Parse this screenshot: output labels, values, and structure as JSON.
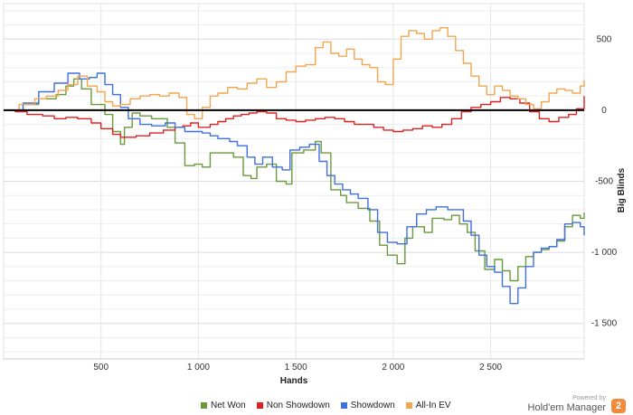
{
  "chart_data": {
    "type": "line",
    "xlabel": "Hands",
    "ylabel": "Big Blinds",
    "xlim": [
      0,
      2980
    ],
    "ylim": [
      -1750,
      750
    ],
    "x_ticks": [
      500,
      1000,
      1500,
      2000,
      2500
    ],
    "x_tick_labels": [
      "500",
      "1 000",
      "1 500",
      "2 000",
      "2 500"
    ],
    "y_ticks": [
      500,
      0,
      -500,
      -1000,
      -1500
    ],
    "y_tick_labels": [
      "500",
      "0",
      "-500",
      "-1 000",
      "-1 500"
    ],
    "grid": true,
    "legend_position": "bottom",
    "series": [
      {
        "name": "Net Won",
        "color": "#6a9a3b",
        "points": [
          [
            0,
            0
          ],
          [
            100,
            40
          ],
          [
            180,
            80
          ],
          [
            270,
            110
          ],
          [
            320,
            170
          ],
          [
            360,
            220
          ],
          [
            400,
            150
          ],
          [
            450,
            40
          ],
          [
            520,
            -30
          ],
          [
            560,
            -150
          ],
          [
            600,
            -240
          ],
          [
            620,
            -120
          ],
          [
            660,
            -20
          ],
          [
            700,
            -40
          ],
          [
            760,
            -60
          ],
          [
            840,
            -120
          ],
          [
            880,
            -230
          ],
          [
            930,
            -390
          ],
          [
            980,
            -380
          ],
          [
            1020,
            -400
          ],
          [
            1060,
            -300
          ],
          [
            1120,
            -300
          ],
          [
            1180,
            -330
          ],
          [
            1230,
            -460
          ],
          [
            1270,
            -480
          ],
          [
            1300,
            -400
          ],
          [
            1350,
            -380
          ],
          [
            1400,
            -500
          ],
          [
            1450,
            -520
          ],
          [
            1480,
            -300
          ],
          [
            1540,
            -280
          ],
          [
            1600,
            -220
          ],
          [
            1630,
            -300
          ],
          [
            1680,
            -560
          ],
          [
            1730,
            -600
          ],
          [
            1760,
            -650
          ],
          [
            1820,
            -690
          ],
          [
            1880,
            -780
          ],
          [
            1930,
            -950
          ],
          [
            1970,
            -1020
          ],
          [
            2020,
            -1080
          ],
          [
            2060,
            -900
          ],
          [
            2100,
            -820
          ],
          [
            2160,
            -860
          ],
          [
            2200,
            -760
          ],
          [
            2260,
            -770
          ],
          [
            2300,
            -740
          ],
          [
            2340,
            -800
          ],
          [
            2380,
            -860
          ],
          [
            2420,
            -990
          ],
          [
            2470,
            -1120
          ],
          [
            2520,
            -1050
          ],
          [
            2560,
            -1130
          ],
          [
            2600,
            -1200
          ],
          [
            2640,
            -1100
          ],
          [
            2680,
            -1030
          ],
          [
            2720,
            -1000
          ],
          [
            2760,
            -980
          ],
          [
            2800,
            -960
          ],
          [
            2840,
            -920
          ],
          [
            2880,
            -820
          ],
          [
            2920,
            -740
          ],
          [
            2960,
            -760
          ],
          [
            2980,
            -720
          ]
        ]
      },
      {
        "name": "Non Showdown",
        "color": "#e02020",
        "points": [
          [
            0,
            0
          ],
          [
            60,
            -10
          ],
          [
            120,
            -30
          ],
          [
            200,
            -40
          ],
          [
            260,
            -60
          ],
          [
            320,
            -50
          ],
          [
            380,
            -60
          ],
          [
            450,
            -90
          ],
          [
            500,
            -130
          ],
          [
            560,
            -170
          ],
          [
            600,
            -190
          ],
          [
            680,
            -180
          ],
          [
            750,
            -160
          ],
          [
            820,
            -140
          ],
          [
            880,
            -120
          ],
          [
            920,
            -110
          ],
          [
            960,
            -90
          ],
          [
            1000,
            -120
          ],
          [
            1060,
            -100
          ],
          [
            1100,
            -80
          ],
          [
            1140,
            -60
          ],
          [
            1180,
            -40
          ],
          [
            1220,
            -30
          ],
          [
            1260,
            -20
          ],
          [
            1300,
            -10
          ],
          [
            1350,
            -20
          ],
          [
            1400,
            -60
          ],
          [
            1450,
            -70
          ],
          [
            1500,
            -80
          ],
          [
            1550,
            -70
          ],
          [
            1600,
            -60
          ],
          [
            1650,
            -50
          ],
          [
            1700,
            -60
          ],
          [
            1750,
            -80
          ],
          [
            1800,
            -100
          ],
          [
            1850,
            -100
          ],
          [
            1900,
            -120
          ],
          [
            1950,
            -140
          ],
          [
            2000,
            -150
          ],
          [
            2050,
            -140
          ],
          [
            2100,
            -130
          ],
          [
            2150,
            -110
          ],
          [
            2200,
            -120
          ],
          [
            2250,
            -100
          ],
          [
            2300,
            -60
          ],
          [
            2350,
            -10
          ],
          [
            2400,
            20
          ],
          [
            2450,
            40
          ],
          [
            2500,
            60
          ],
          [
            2550,
            90
          ],
          [
            2600,
            80
          ],
          [
            2650,
            50
          ],
          [
            2700,
            -10
          ],
          [
            2750,
            -60
          ],
          [
            2800,
            -80
          ],
          [
            2850,
            -50
          ],
          [
            2900,
            -30
          ],
          [
            2940,
            10
          ],
          [
            2980,
            100
          ]
        ]
      },
      {
        "name": "Showdown",
        "color": "#3f6fe0",
        "points": [
          [
            0,
            0
          ],
          [
            100,
            50
          ],
          [
            180,
            130
          ],
          [
            260,
            190
          ],
          [
            330,
            260
          ],
          [
            390,
            220
          ],
          [
            440,
            230
          ],
          [
            480,
            260
          ],
          [
            520,
            180
          ],
          [
            560,
            110
          ],
          [
            600,
            20
          ],
          [
            640,
            -60
          ],
          [
            700,
            -100
          ],
          [
            760,
            -110
          ],
          [
            830,
            -90
          ],
          [
            880,
            -120
          ],
          [
            930,
            -150
          ],
          [
            980,
            -150
          ],
          [
            1020,
            -160
          ],
          [
            1060,
            -180
          ],
          [
            1100,
            -200
          ],
          [
            1160,
            -220
          ],
          [
            1200,
            -250
          ],
          [
            1250,
            -330
          ],
          [
            1290,
            -380
          ],
          [
            1330,
            -330
          ],
          [
            1380,
            -400
          ],
          [
            1430,
            -420
          ],
          [
            1470,
            -280
          ],
          [
            1520,
            -260
          ],
          [
            1570,
            -240
          ],
          [
            1620,
            -360
          ],
          [
            1660,
            -460
          ],
          [
            1700,
            -520
          ],
          [
            1740,
            -560
          ],
          [
            1780,
            -590
          ],
          [
            1820,
            -620
          ],
          [
            1870,
            -700
          ],
          [
            1920,
            -860
          ],
          [
            1970,
            -930
          ],
          [
            2020,
            -940
          ],
          [
            2070,
            -820
          ],
          [
            2120,
            -730
          ],
          [
            2170,
            -700
          ],
          [
            2220,
            -680
          ],
          [
            2280,
            -700
          ],
          [
            2320,
            -700
          ],
          [
            2360,
            -780
          ],
          [
            2400,
            -880
          ],
          [
            2440,
            -1020
          ],
          [
            2480,
            -1100
          ],
          [
            2520,
            -1140
          ],
          [
            2560,
            -1240
          ],
          [
            2600,
            -1360
          ],
          [
            2640,
            -1250
          ],
          [
            2680,
            -1100
          ],
          [
            2720,
            -1000
          ],
          [
            2760,
            -970
          ],
          [
            2800,
            -960
          ],
          [
            2840,
            -910
          ],
          [
            2880,
            -800
          ],
          [
            2920,
            -790
          ],
          [
            2960,
            -820
          ],
          [
            2980,
            -880
          ]
        ]
      },
      {
        "name": "All-In EV",
        "color": "#f4a54f",
        "points": [
          [
            0,
            0
          ],
          [
            80,
            40
          ],
          [
            160,
            80
          ],
          [
            220,
            100
          ],
          [
            280,
            140
          ],
          [
            330,
            180
          ],
          [
            380,
            240
          ],
          [
            430,
            170
          ],
          [
            480,
            130
          ],
          [
            520,
            60
          ],
          [
            560,
            30
          ],
          [
            600,
            40
          ],
          [
            650,
            80
          ],
          [
            700,
            100
          ],
          [
            750,
            110
          ],
          [
            800,
            100
          ],
          [
            850,
            120
          ],
          [
            900,
            90
          ],
          [
            940,
            -30
          ],
          [
            980,
            -60
          ],
          [
            1020,
            20
          ],
          [
            1060,
            100
          ],
          [
            1100,
            120
          ],
          [
            1150,
            160
          ],
          [
            1200,
            150
          ],
          [
            1250,
            190
          ],
          [
            1300,
            220
          ],
          [
            1350,
            160
          ],
          [
            1400,
            200
          ],
          [
            1450,
            270
          ],
          [
            1500,
            310
          ],
          [
            1550,
            320
          ],
          [
            1600,
            440
          ],
          [
            1640,
            480
          ],
          [
            1680,
            400
          ],
          [
            1720,
            380
          ],
          [
            1760,
            430
          ],
          [
            1800,
            360
          ],
          [
            1840,
            320
          ],
          [
            1880,
            300
          ],
          [
            1920,
            200
          ],
          [
            1960,
            180
          ],
          [
            2000,
            360
          ],
          [
            2040,
            520
          ],
          [
            2080,
            560
          ],
          [
            2120,
            540
          ],
          [
            2160,
            500
          ],
          [
            2200,
            560
          ],
          [
            2240,
            580
          ],
          [
            2280,
            520
          ],
          [
            2320,
            420
          ],
          [
            2360,
            330
          ],
          [
            2400,
            240
          ],
          [
            2440,
            170
          ],
          [
            2480,
            110
          ],
          [
            2520,
            170
          ],
          [
            2560,
            140
          ],
          [
            2600,
            100
          ],
          [
            2640,
            80
          ],
          [
            2680,
            40
          ],
          [
            2720,
            10
          ],
          [
            2760,
            60
          ],
          [
            2800,
            120
          ],
          [
            2840,
            150
          ],
          [
            2880,
            140
          ],
          [
            2920,
            120
          ],
          [
            2960,
            170
          ],
          [
            2980,
            210
          ]
        ]
      }
    ]
  },
  "branding": {
    "powered_by": "Powered by",
    "name": "Hold'em Manager",
    "badge": "2"
  }
}
